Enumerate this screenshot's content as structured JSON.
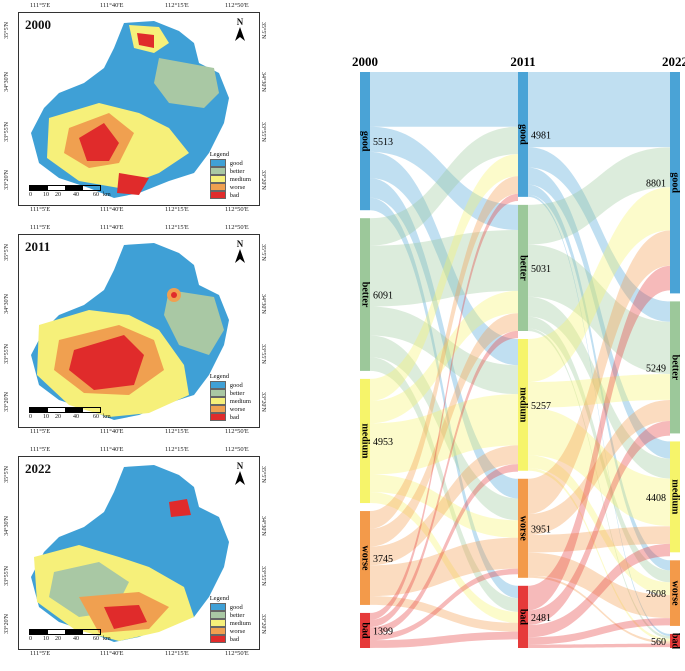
{
  "maps": [
    {
      "year": "2000",
      "top_ticks": [
        "111°5'E",
        "111°40'E",
        "112°15'E",
        "112°50'E"
      ],
      "bottom_ticks": [
        "111°5'E",
        "111°40'E",
        "112°15'E",
        "112°50'E"
      ],
      "left_ticks": [
        "35°5'N",
        "34°30'N",
        "33°55'N",
        "33°20'N"
      ],
      "right_ticks": [
        "35°5'N",
        "34°30'N",
        "33°55'N",
        "33°20'N"
      ]
    },
    {
      "year": "2011",
      "top_ticks": [
        "111°5'E",
        "111°40'E",
        "112°15'E",
        "112°50'E"
      ],
      "bottom_ticks": [
        "111°5'E",
        "111°40'E",
        "112°15'E",
        "112°50'E"
      ],
      "left_ticks": [
        "35°5'N",
        "34°30'N",
        "33°55'N",
        "33°20'N"
      ],
      "right_ticks": [
        "35°5'N",
        "34°30'N",
        "33°55'N",
        "33°20'N"
      ]
    },
    {
      "year": "2022",
      "top_ticks": [
        "111°5'E",
        "111°40'E",
        "112°15'E",
        "112°50'E"
      ],
      "bottom_ticks": [
        "111°5'E",
        "111°40'E",
        "112°15'E",
        "112°50'E"
      ],
      "left_ticks": [
        "35°5'N",
        "34°30'N",
        "33°55'N",
        "33°20'N"
      ],
      "right_ticks": [
        "35°5'N",
        "34°30'N",
        "33°55'N",
        "33°20'N"
      ]
    }
  ],
  "legend": {
    "title": "Legend",
    "items": [
      {
        "label": "good",
        "color": "#3fa0d6"
      },
      {
        "label": "better",
        "color": "#a9c8a4"
      },
      {
        "label": "medium",
        "color": "#f6f07a"
      },
      {
        "label": "worse",
        "color": "#f0a050"
      },
      {
        "label": "bad",
        "color": "#e02b2b"
      }
    ]
  },
  "scale": {
    "labels": [
      "0",
      "10",
      "20",
      "40",
      "60"
    ],
    "unit": "km"
  },
  "north": "N",
  "chart_data": {
    "type": "sankey",
    "columns": [
      "2000",
      "2011",
      "2022"
    ],
    "categories": [
      "good",
      "better",
      "medium",
      "worse",
      "bad"
    ],
    "colors": {
      "good": "#4aa3d6",
      "better": "#9cc89a",
      "medium": "#f6f46a",
      "worse": "#f39a4a",
      "bad": "#e63a3a"
    },
    "values": {
      "2000": [
        5513,
        6091,
        4953,
        3745,
        1399
      ],
      "2011": [
        4981,
        5031,
        5257,
        3951,
        2481
      ],
      "2022": [
        8801,
        5249,
        4408,
        2608,
        560
      ]
    },
    "value_labels": {
      "2000": [
        "5513",
        "6091",
        "4953",
        "3745",
        "1399"
      ],
      "2011": [
        "4981",
        "5031",
        "5257",
        "3951",
        "2481"
      ],
      "2022": [
        "8801",
        "5249",
        "4408",
        "2608",
        "560"
      ]
    }
  }
}
